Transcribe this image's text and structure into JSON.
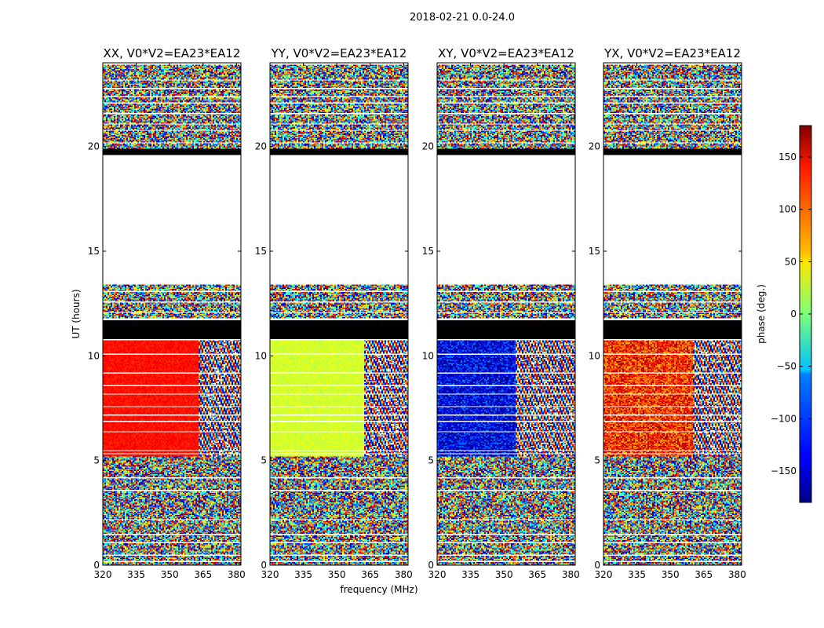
{
  "figure": {
    "suptitle": "2018-02-21 0.0-24.0"
  },
  "chart_data": {
    "type": "heatmap",
    "title": "2018-02-21 0.0-24.0",
    "xlabel": "frequency (MHz)",
    "ylabel": "UT (hours)",
    "xlim": [
      320,
      382
    ],
    "ylim": [
      0,
      24
    ],
    "xticks": [
      "320",
      "335",
      "350",
      "365",
      "380"
    ],
    "yticks": [
      "0",
      "5",
      "10",
      "15",
      "20"
    ],
    "colorbar": {
      "label": "phase (deg.)",
      "range": [
        -180,
        180
      ],
      "ticks": [
        "150",
        "100",
        "50",
        "0",
        "−50",
        "−100",
        "−150"
      ],
      "colormap": "jet"
    },
    "panels": [
      {
        "title": "XX, V0*V2=EA23*EA12",
        "dominant_phase_5_to_11h": 130,
        "transition_mhz": 363
      },
      {
        "title": "YY, V0*V2=EA23*EA12",
        "dominant_phase_5_to_11h": 30,
        "transition_mhz": 362
      },
      {
        "title": "XY, V0*V2=EA23*EA12",
        "dominant_phase_5_to_11h": -140,
        "transition_mhz": 355
      },
      {
        "title": "YX, V0*V2=EA23*EA12",
        "dominant_phase_5_to_11h": 120,
        "transition_mhz": 360
      }
    ],
    "structure": {
      "noise_bands_hours": [
        [
          0,
          5.2
        ],
        [
          11.8,
          13.4
        ],
        [
          19.8,
          23.9
        ]
      ],
      "flagged_black_hours": [
        [
          10.8,
          11.7
        ],
        [
          19.6,
          19.9
        ]
      ],
      "empty_gap_hours": [
        [
          13.4,
          19.6
        ]
      ],
      "white_stripes_hours": [
        0.2,
        0.5,
        1.1,
        1.5,
        2.2,
        3.6,
        4.2,
        5.35,
        5.5,
        6.4,
        6.9,
        7.2,
        7.6,
        8.2,
        8.6,
        9.2,
        10.1,
        10.8,
        12.1,
        12.6,
        13.1,
        20.2,
        20.8,
        21.1,
        21.6,
        22.1,
        22.4,
        22.8,
        23.2
      ]
    }
  }
}
